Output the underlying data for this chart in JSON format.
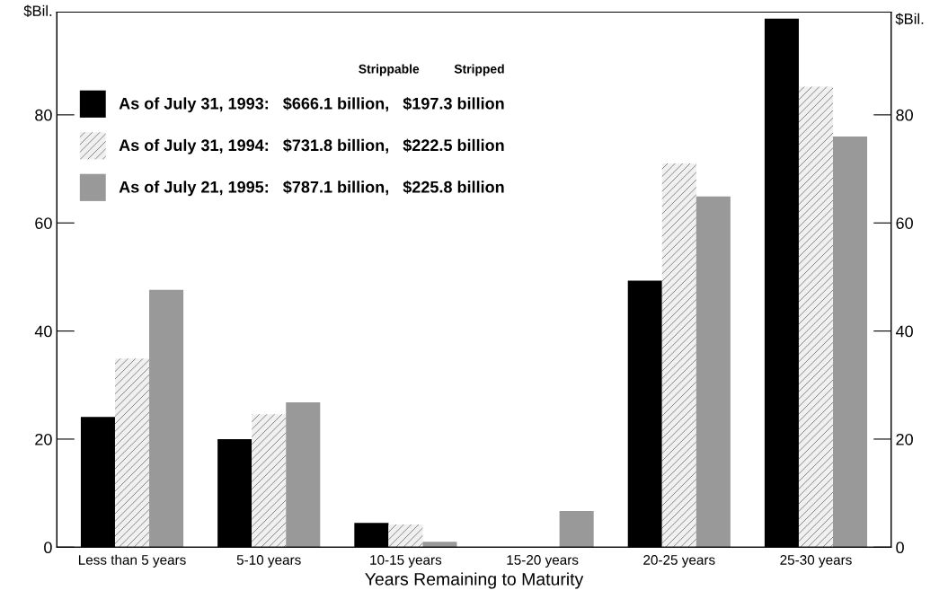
{
  "chart_data": {
    "type": "bar",
    "categories": [
      "Less than 5 years",
      "5-10 years",
      "10-15 years",
      "15-20 years",
      "20-25 years",
      "25-30 years"
    ],
    "series": [
      {
        "name": "As of July 31, 1993:   $666.1 billion,   $197.3 billion",
        "color": "#000000",
        "values": [
          24.1,
          20.0,
          4.5,
          0,
          49.3,
          97.8
        ]
      },
      {
        "name": "As of July 31, 1994:   $731.8 billion,   $222.5 billion",
        "color": "#f0f0f0",
        "values": [
          34.9,
          24.6,
          4.2,
          0,
          71.0,
          85.2
        ]
      },
      {
        "name": "As of July 21, 1995:   $787.1 billion,   $225.8 billion",
        "color": "#999999",
        "values": [
          47.6,
          26.8,
          1.0,
          6.7,
          64.9,
          76.0
        ]
      }
    ],
    "xlabel": "Years Remaining to Maturity",
    "ylabel": "$Bil.",
    "y2label": "$Bil.",
    "legend_title": "Strippable          Stripped",
    "ylim": [
      0,
      99
    ],
    "yticks": [
      0,
      20,
      40,
      60,
      80
    ],
    "y2lim": [
      0,
      99
    ],
    "y2ticks": [
      0,
      20,
      40,
      60,
      80
    ],
    "grid": false,
    "legend": "top left"
  }
}
